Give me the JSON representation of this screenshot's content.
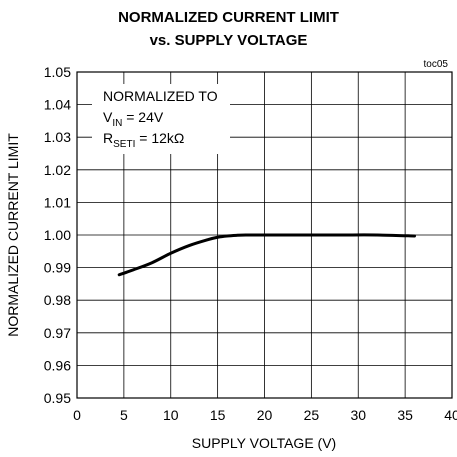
{
  "chart_data": {
    "type": "line",
    "title": "NORMALIZED CURRENT LIMIT",
    "subtitle": "vs. SUPPLY VOLTAGE",
    "tag": "toc05",
    "xlabel": "SUPPLY VOLTAGE (V)",
    "ylabel": "NORMALIZED CURRENT LIMIT",
    "xlim": [
      0,
      40
    ],
    "ylim": [
      0.95,
      1.05
    ],
    "x_ticks": [
      "0",
      "5",
      "10",
      "15",
      "20",
      "25",
      "30",
      "35",
      "40"
    ],
    "y_ticks": [
      "0.95",
      "0.96",
      "0.97",
      "0.98",
      "0.99",
      "1.00",
      "1.01",
      "1.02",
      "1.03",
      "1.04",
      "1.05"
    ],
    "grid": true,
    "annotation": {
      "line1": "NORMALIZED TO",
      "line2_pre": "V",
      "line2_sub": "IN",
      "line2_post": " = 24V",
      "line3_pre": "R",
      "line3_sub": "SETI",
      "line3_post": " = 12kΩ"
    },
    "series": [
      {
        "x": [
          4.5,
          6,
          8,
          10,
          12,
          14,
          15,
          16,
          17,
          18,
          20,
          24,
          28,
          32,
          36
        ],
        "y": [
          0.9878,
          0.9893,
          0.9915,
          0.9944,
          0.9968,
          0.9986,
          0.9993,
          0.9997,
          0.9999,
          1.0,
          1.0,
          1.0,
          1.0,
          1.0,
          0.9997
        ]
      }
    ],
    "colors": {
      "line": "#000000",
      "grid": "#000000"
    }
  }
}
